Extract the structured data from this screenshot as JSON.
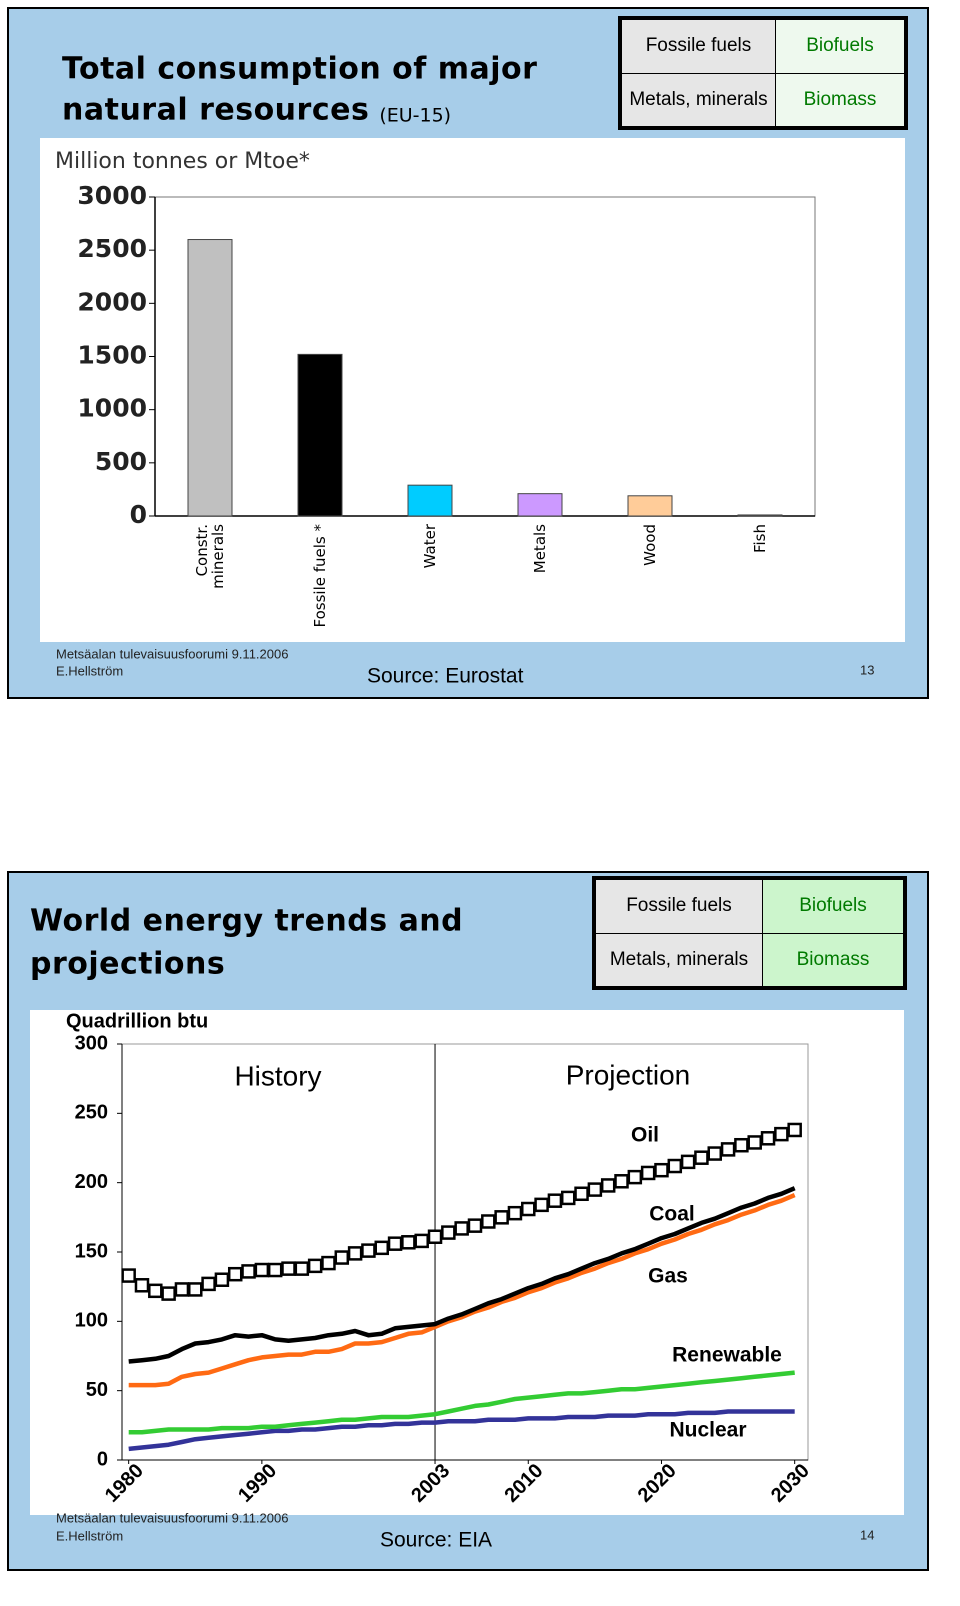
{
  "slides": [
    {
      "title": [
        "Total consumption of major",
        "natural resources"
      ],
      "title_note": "(EU-15)",
      "header": [
        [
          "Fossile fuels",
          "Biofuels"
        ],
        [
          "Metals, minerals",
          "Biomass"
        ]
      ],
      "footer": [
        "Metsäalan tulevaisuusfoorumi 9.11.2006",
        "E.Hellström"
      ],
      "source": "Source: Eurostat",
      "page": 13
    },
    {
      "title": [
        "World energy trends and",
        "projections"
      ],
      "header": [
        [
          "Fossile fuels",
          "Biofuels"
        ],
        [
          "Metals, minerals",
          "Biomass"
        ]
      ],
      "footer": [
        "Metsäalan tulevaisuusfoorumi 9.11.2006",
        "E.Hellström"
      ],
      "source": "Source: EIA",
      "page": 14
    }
  ],
  "chart_data": [
    {
      "type": "bar",
      "ylabel": "Million tonnes or Mtoe*",
      "categories": [
        "Constr. minerals",
        "Fossile fuels *",
        "Water",
        "Metals",
        "Wood",
        "Fish"
      ],
      "values": [
        2600,
        1520,
        290,
        210,
        190,
        10
      ],
      "colors": [
        "#c0c0c0",
        "#000000",
        "#00ccff",
        "#cc99ff",
        "#ffcc99",
        "#808080"
      ],
      "ylim": [
        0,
        3000
      ],
      "yticks": [
        0,
        500,
        1000,
        1500,
        2000,
        2500,
        3000
      ],
      "grid": false
    },
    {
      "type": "line",
      "ylabel": "Quadrillion btu",
      "annotations": [
        "History",
        "Projection"
      ],
      "divider": 2003,
      "x": [
        1980,
        1981,
        1982,
        1983,
        1984,
        1985,
        1986,
        1987,
        1988,
        1989,
        1990,
        1991,
        1992,
        1993,
        1994,
        1995,
        1996,
        1997,
        1998,
        1999,
        2000,
        2001,
        2002,
        2003,
        2004,
        2005,
        2006,
        2007,
        2008,
        2009,
        2010,
        2011,
        2012,
        2013,
        2014,
        2015,
        2016,
        2017,
        2018,
        2019,
        2020,
        2021,
        2022,
        2023,
        2024,
        2025,
        2026,
        2027,
        2028,
        2029,
        2030
      ],
      "series": [
        {
          "name": "Oil",
          "color": "#000000",
          "marker": "square",
          "values": [
            133,
            126,
            122,
            120,
            123,
            123,
            127,
            130,
            134,
            136,
            137,
            137,
            138,
            138,
            140,
            142,
            146,
            149,
            151,
            153,
            156,
            157,
            158,
            161,
            164,
            167,
            169,
            172,
            175,
            178,
            181,
            184,
            187,
            189,
            192,
            195,
            198,
            201,
            204,
            207,
            209,
            212,
            215,
            218,
            221,
            224,
            227,
            229,
            232,
            235,
            238
          ]
        },
        {
          "name": "Coal",
          "color": "#000000",
          "values": [
            71,
            72,
            73,
            75,
            80,
            84,
            85,
            87,
            90,
            89,
            90,
            87,
            86,
            87,
            88,
            90,
            91,
            93,
            90,
            91,
            95,
            96,
            97,
            98,
            102,
            105,
            109,
            113,
            116,
            120,
            124,
            127,
            131,
            134,
            138,
            142,
            145,
            149,
            152,
            156,
            160,
            163,
            167,
            171,
            174,
            178,
            182,
            185,
            189,
            192,
            196
          ]
        },
        {
          "name": "Gas",
          "color": "#ff6a13",
          "values": [
            54,
            54,
            54,
            55,
            60,
            62,
            63,
            66,
            69,
            72,
            74,
            75,
            76,
            76,
            78,
            78,
            80,
            84,
            84,
            85,
            88,
            91,
            92,
            96,
            100,
            103,
            107,
            110,
            114,
            117,
            121,
            124,
            128,
            131,
            135,
            138,
            142,
            145,
            149,
            152,
            156,
            159,
            163,
            166,
            170,
            173,
            177,
            180,
            184,
            187,
            191
          ]
        },
        {
          "name": "Renewable",
          "color": "#33cc33",
          "values": [
            20,
            20,
            21,
            22,
            22,
            22,
            22,
            23,
            23,
            23,
            24,
            24,
            25,
            26,
            27,
            28,
            29,
            29,
            30,
            31,
            31,
            31,
            32,
            33,
            35,
            37,
            39,
            40,
            42,
            44,
            45,
            46,
            47,
            48,
            48,
            49,
            50,
            51,
            51,
            52,
            53,
            54,
            55,
            56,
            57,
            58,
            59,
            60,
            61,
            62,
            63
          ]
        },
        {
          "name": "Nuclear",
          "color": "#333399",
          "values": [
            8,
            9,
            10,
            11,
            13,
            15,
            16,
            17,
            18,
            19,
            20,
            21,
            21,
            22,
            22,
            23,
            24,
            24,
            25,
            25,
            26,
            26,
            27,
            27,
            28,
            28,
            28,
            29,
            29,
            29,
            30,
            30,
            30,
            31,
            31,
            31,
            32,
            32,
            32,
            33,
            33,
            33,
            34,
            34,
            34,
            35,
            35,
            35,
            35,
            35,
            35
          ]
        }
      ],
      "xlim": [
        1979.5,
        2031
      ],
      "xticks": [
        1980,
        1990,
        2003,
        2010,
        2020,
        2030
      ],
      "ylim": [
        0,
        300
      ],
      "yticks": [
        0,
        50,
        100,
        150,
        200,
        250,
        300
      ],
      "grid": false
    }
  ]
}
